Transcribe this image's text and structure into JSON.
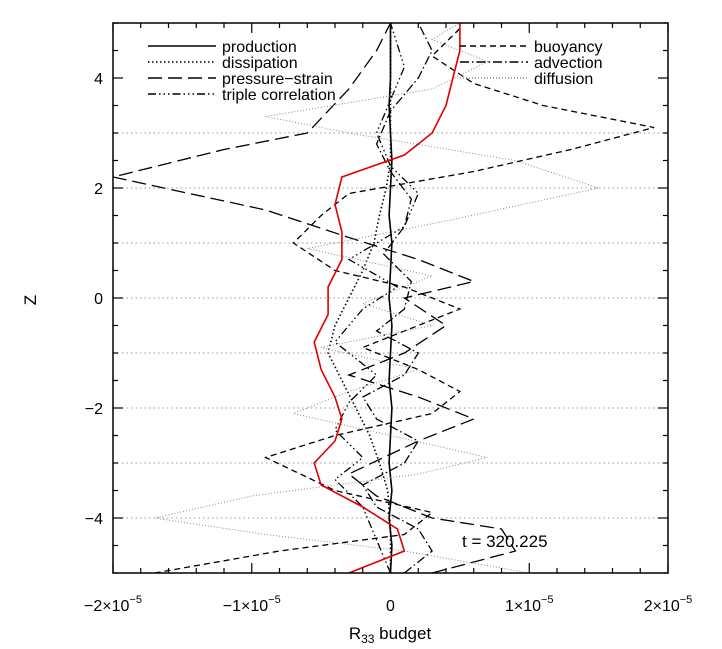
{
  "chart_data": {
    "type": "line",
    "xlabel_base": "R",
    "xlabel_sub": "33",
    "xlabel_rest": " budget",
    "ylabel": "Z",
    "xlim": [
      -2e-05,
      2e-05
    ],
    "ylim": [
      -5,
      5
    ],
    "x_ticks": [
      {
        "value": -2e-05,
        "mant": "−2×10",
        "exp": "−5"
      },
      {
        "value": -1e-05,
        "mant": "−1×10",
        "exp": "−5"
      },
      {
        "value": 0,
        "mant": "0",
        "exp": ""
      },
      {
        "value": 1e-05,
        "mant": "1×10",
        "exp": "−5"
      },
      {
        "value": 2e-05,
        "mant": "2×10",
        "exp": "−5"
      }
    ],
    "y_ticks": [
      {
        "value": 4,
        "label": "4"
      },
      {
        "value": 2,
        "label": "2"
      },
      {
        "value": 0,
        "label": "0"
      },
      {
        "value": -2,
        "label": "−2"
      },
      {
        "value": -4,
        "label": "−4"
      }
    ],
    "grid_y": [
      3,
      2,
      1,
      0,
      -1,
      -2,
      -3,
      -4
    ],
    "annotation": "t = 320.225",
    "legend": [
      {
        "name": "production",
        "dash": "",
        "col": "left"
      },
      {
        "name": "dissipation",
        "dash": "1.5 2.5",
        "col": "left"
      },
      {
        "name": "pressure−strain",
        "dash": "14 6",
        "col": "left"
      },
      {
        "name": "triple correlation",
        "dash": "8 3 1.5 3 1.5 3 1.5 3",
        "col": "left"
      },
      {
        "name": "buoyancy",
        "dash": "6 4",
        "col": "right"
      },
      {
        "name": "advection",
        "dash": "9 3 1.5 3",
        "col": "right"
      },
      {
        "name": "diffusion",
        "dash": "1 2",
        "col": "right",
        "color": "#888888"
      }
    ],
    "series": [
      {
        "name": "production",
        "color": "#000000",
        "width": 1.6,
        "dash": "",
        "points": [
          [
            0.0,
            -5.0
          ],
          [
            1e-07,
            -4.5
          ],
          [
            -1e-07,
            -4.0
          ],
          [
            1e-07,
            -3.5
          ],
          [
            -1e-07,
            -3.0
          ],
          [
            0.0,
            -2.5
          ],
          [
            1e-07,
            -2.0
          ],
          [
            -1e-07,
            -1.5
          ],
          [
            0.0,
            -1.0
          ],
          [
            1e-07,
            -0.5
          ],
          [
            -1e-07,
            0.0
          ],
          [
            0.0,
            0.5
          ],
          [
            1e-07,
            1.0
          ],
          [
            -1e-07,
            1.5
          ],
          [
            0.0,
            2.0
          ],
          [
            1e-07,
            2.5
          ],
          [
            0.0,
            3.0
          ],
          [
            -1e-07,
            3.5
          ],
          [
            0.0,
            4.0
          ],
          [
            0.0,
            4.5
          ],
          [
            0.0,
            5.0
          ]
        ]
      },
      {
        "name": "dissipation",
        "color": "#000000",
        "width": 1.6,
        "dash": "1.5 2.5",
        "points": [
          [
            0.0,
            -5.0
          ],
          [
            0.0,
            -4.2
          ],
          [
            -2e-07,
            -3.5
          ],
          [
            -8e-07,
            -3.0
          ],
          [
            -1.5e-06,
            -2.5
          ],
          [
            -2.5e-06,
            -2.0
          ],
          [
            -3.5e-06,
            -1.5
          ],
          [
            -4.5e-06,
            -1.0
          ],
          [
            -4e-06,
            -0.5
          ],
          [
            -3e-06,
            0.0
          ],
          [
            -2e-06,
            0.5
          ],
          [
            -1.2e-06,
            1.0
          ],
          [
            -8e-07,
            1.5
          ],
          [
            -3e-07,
            2.0
          ],
          [
            0.0,
            2.5
          ],
          [
            0.0,
            3.0
          ],
          [
            0.0,
            5.0
          ]
        ]
      },
      {
        "name": "pressure−strain",
        "color": "#000000",
        "width": 1.3,
        "dash": "14 6",
        "points": [
          [
            3e-06,
            -5.0
          ],
          [
            9e-06,
            -4.6
          ],
          [
            8e-06,
            -4.2
          ],
          [
            3e-06,
            -4.0
          ],
          [
            -1e-06,
            -3.6
          ],
          [
            -3e-06,
            -3.2
          ],
          [
            2e-06,
            -2.6
          ],
          [
            6e-06,
            -2.2
          ],
          [
            2e-06,
            -1.8
          ],
          [
            -3e-06,
            -1.4
          ],
          [
            1e-06,
            -1.0
          ],
          [
            4e-06,
            -0.5
          ],
          [
            1e-06,
            0.0
          ],
          [
            6e-06,
            0.3
          ],
          [
            2e-06,
            0.7
          ],
          [
            -3e-06,
            1.1
          ],
          [
            -9e-06,
            1.6
          ],
          [
            -2e-05,
            2.2
          ],
          [
            -1.2e-05,
            2.7
          ],
          [
            -6e-06,
            3.0
          ],
          [
            -3e-06,
            3.8
          ],
          [
            -1e-06,
            4.5
          ],
          [
            0.0,
            5.0
          ]
        ]
      },
      {
        "name": "triple correlation",
        "color": "#000000",
        "width": 1.3,
        "dash": "8 3 1.5 3 1.5 3 1.5 3",
        "points": [
          [
            0.0,
            -5.0
          ],
          [
            -1e-06,
            -4.4
          ],
          [
            -2e-06,
            -3.8
          ],
          [
            -4e-06,
            -3.3
          ],
          [
            -2e-06,
            -2.9
          ],
          [
            -4e-06,
            -2.4
          ],
          [
            -3e-06,
            -1.9
          ],
          [
            -1e-06,
            -1.4
          ],
          [
            -4e-06,
            -0.8
          ],
          [
            -2e-06,
            -0.2
          ],
          [
            5e-07,
            0.2
          ],
          [
            -3e-06,
            0.7
          ],
          [
            1e-06,
            1.3
          ],
          [
            2e-06,
            1.9
          ],
          [
            0.0,
            2.4
          ],
          [
            -1e-06,
            3.0
          ],
          [
            0.0,
            3.6
          ],
          [
            1e-06,
            4.2
          ],
          [
            0.0,
            5.0
          ]
        ]
      },
      {
        "name": "buoyancy",
        "color": "#000000",
        "width": 1.3,
        "dash": "6 4",
        "points": [
          [
            -1.7e-05,
            -5.0
          ],
          [
            -8e-06,
            -4.6
          ],
          [
            1e-06,
            -4.3
          ],
          [
            3e-06,
            -3.9
          ],
          [
            -4e-06,
            -3.5
          ],
          [
            -9e-06,
            -2.9
          ],
          [
            -4e-06,
            -2.5
          ],
          [
            3e-06,
            -2.1
          ],
          [
            5e-06,
            -1.7
          ],
          [
            2e-06,
            -1.3
          ],
          [
            -2e-06,
            -0.9
          ],
          [
            2e-06,
            -0.5
          ],
          [
            5e-06,
            -0.2
          ],
          [
            1e-06,
            0.2
          ],
          [
            -4e-06,
            0.5
          ],
          [
            -7e-06,
            1.0
          ],
          [
            -5e-06,
            1.5
          ],
          [
            -3e-06,
            1.9
          ],
          [
            6e-06,
            2.3
          ],
          [
            1.3e-05,
            2.7
          ],
          [
            1.9e-05,
            3.1
          ],
          [
            1.1e-05,
            3.5
          ],
          [
            6e-06,
            3.9
          ],
          [
            3e-06,
            4.4
          ],
          [
            5e-06,
            4.9
          ]
        ]
      },
      {
        "name": "advection",
        "color": "#000000",
        "width": 1.3,
        "dash": "9 3 1.5 3",
        "points": [
          [
            1e-06,
            -5.0
          ],
          [
            3e-06,
            -4.6
          ],
          [
            2e-06,
            -4.2
          ],
          [
            -1e-06,
            -3.8
          ],
          [
            -2e-06,
            -3.4
          ],
          [
            1e-06,
            -3.0
          ],
          [
            2e-06,
            -2.6
          ],
          [
            -1e-06,
            -2.2
          ],
          [
            -2e-06,
            -1.8
          ],
          [
            1e-06,
            -1.4
          ],
          [
            2e-06,
            -1.0
          ],
          [
            -1e-06,
            -0.6
          ],
          [
            1e-06,
            -0.2
          ],
          [
            1.5e-06,
            0.3
          ],
          [
            -5e-07,
            0.8
          ],
          [
            1e-06,
            1.3
          ],
          [
            1.5e-06,
            1.8
          ],
          [
            0.0,
            2.3
          ],
          [
            -1e-06,
            2.8
          ],
          [
            0.0,
            3.4
          ],
          [
            2e-06,
            4.0
          ],
          [
            3e-06,
            4.5
          ],
          [
            2e-06,
            5.0
          ]
        ]
      },
      {
        "name": "diffusion",
        "color": "#888888",
        "width": 1.0,
        "dash": "1 2",
        "points": [
          [
            1e-05,
            -5.0
          ],
          [
            1e-06,
            -4.6
          ],
          [
            -9e-06,
            -4.3
          ],
          [
            -1.7e-05,
            -4.0
          ],
          [
            -1e-05,
            -3.6
          ],
          [
            2e-06,
            -3.2
          ],
          [
            7e-06,
            -2.9
          ],
          [
            0.0,
            -2.5
          ],
          [
            -7e-06,
            -2.1
          ],
          [
            -3e-06,
            -1.7
          ],
          [
            2e-06,
            -1.3
          ],
          [
            -5e-06,
            -0.9
          ],
          [
            3e-06,
            -0.5
          ],
          [
            -2e-06,
            -0.1
          ],
          [
            3e-06,
            0.4
          ],
          [
            -6e-06,
            0.9
          ],
          [
            4e-06,
            1.4
          ],
          [
            1.5e-05,
            2.0
          ],
          [
            9e-06,
            2.5
          ],
          [
            -3e-06,
            3.0
          ],
          [
            -9e-06,
            3.3
          ],
          [
            3e-06,
            3.8
          ],
          [
            7e-06,
            4.3
          ],
          [
            3e-06,
            4.7
          ],
          [
            5e-06,
            5.0
          ]
        ]
      },
      {
        "name": "",
        "color": "#e00000",
        "width": 1.6,
        "dash": "",
        "points": [
          [
            -3e-06,
            -5.0
          ],
          [
            1e-06,
            -4.6
          ],
          [
            5e-07,
            -4.2
          ],
          [
            -2e-06,
            -3.8
          ],
          [
            -5e-06,
            -3.4
          ],
          [
            -5.5e-06,
            -3.0
          ],
          [
            -4e-06,
            -2.6
          ],
          [
            -3.5e-06,
            -2.2
          ],
          [
            -4e-06,
            -1.8
          ],
          [
            -5e-06,
            -1.3
          ],
          [
            -5.5e-06,
            -0.8
          ],
          [
            -4.5e-06,
            -0.3
          ],
          [
            -4.5e-06,
            0.2
          ],
          [
            -3.5e-06,
            0.7
          ],
          [
            -3.5e-06,
            1.2
          ],
          [
            -4e-06,
            1.7
          ],
          [
            -3.5e-06,
            2.2
          ],
          [
            1e-06,
            2.6
          ],
          [
            3e-06,
            3.0
          ],
          [
            4e-06,
            3.5
          ],
          [
            4.5e-06,
            4.0
          ],
          [
            5e-06,
            4.5
          ],
          [
            5e-06,
            5.0
          ]
        ]
      }
    ]
  }
}
